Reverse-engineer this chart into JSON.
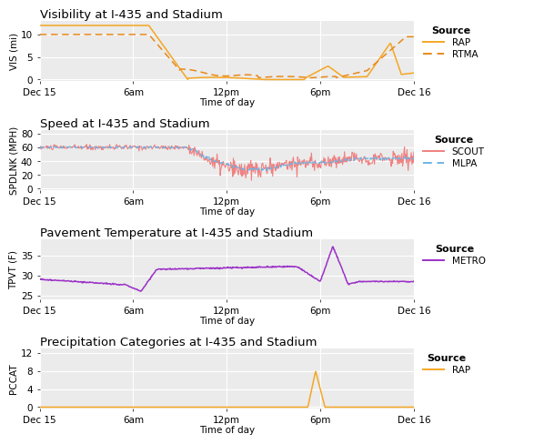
{
  "title1": "Visibility at I-435 and Stadium",
  "title2": "Speed at I-435 and Stadium",
  "title3": "Pavement Temperature at I-435 and Stadium",
  "title4": "Precipitation Categories at I-435 and Stadium",
  "xlabel": "Time of day",
  "ylabel1": "VIS (mi)",
  "ylabel2": "SPDLNK (MPH)",
  "ylabel3": "TPVT (F)",
  "ylabel4": "PCCAT",
  "xtick_labels": [
    "Dec 15",
    "6am",
    "12pm",
    "6pm",
    "Dec 16"
  ],
  "xtick_positions": [
    0,
    6,
    12,
    18,
    24
  ],
  "background_color": "#EBEBEB",
  "fig_background": "#FFFFFF",
  "grid_color": "#FFFFFF",
  "rap_vis_color": "#F5A623",
  "rtma_vis_color": "#E8891A",
  "scout_color": "#F08080",
  "mlpa_color": "#6CB4E4",
  "metro_color": "#9B30C8",
  "rap_pccat_color": "#F5A623",
  "title_fontsize": 9.5,
  "label_fontsize": 7.5,
  "tick_fontsize": 7.5,
  "legend_title_fontsize": 8,
  "legend_fontsize": 7.5
}
